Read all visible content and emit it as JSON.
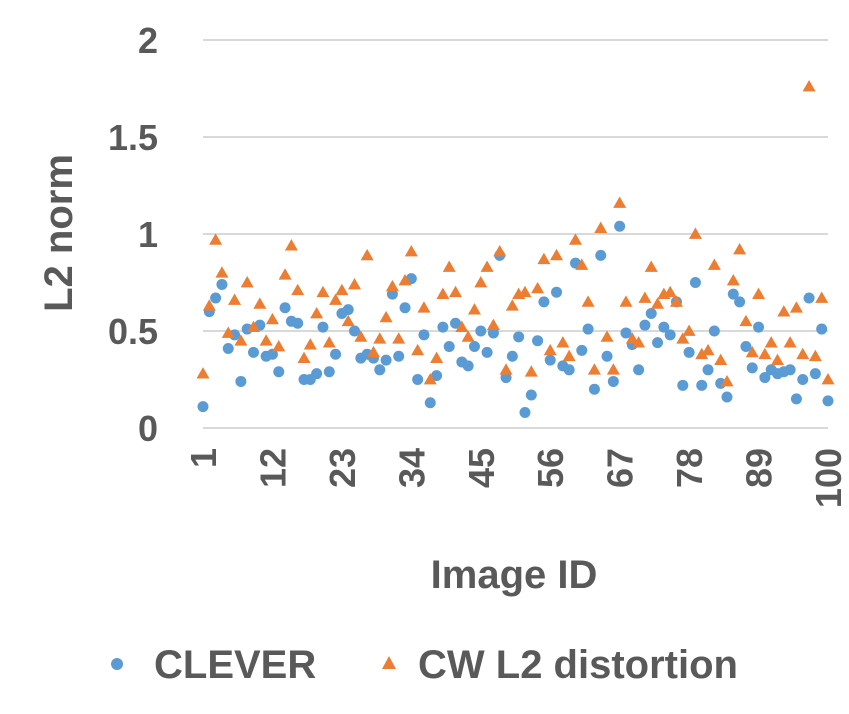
{
  "chart_data": {
    "type": "scatter",
    "ylabel": "L2 norm",
    "xlabel": "Image ID",
    "ylim": [
      0,
      2
    ],
    "yticks": [
      "0",
      "0.5",
      "1",
      "1.5",
      "2"
    ],
    "xticks": [
      1,
      12,
      23,
      34,
      45,
      56,
      67,
      78,
      89,
      100
    ],
    "xlim": [
      1,
      100
    ],
    "grid": "horizontal",
    "legend_position": "bottom",
    "series": [
      {
        "name": "CLEVER",
        "marker": "circle",
        "color": "#5B9BD5",
        "x": [
          1,
          2,
          3,
          4,
          5,
          6,
          7,
          8,
          9,
          10,
          11,
          12,
          13,
          14,
          15,
          16,
          17,
          18,
          19,
          20,
          21,
          22,
          23,
          24,
          25,
          26,
          27,
          28,
          29,
          30,
          31,
          32,
          33,
          34,
          35,
          36,
          37,
          38,
          39,
          40,
          41,
          42,
          43,
          44,
          45,
          46,
          47,
          48,
          49,
          50,
          51,
          52,
          53,
          54,
          55,
          56,
          57,
          58,
          59,
          60,
          61,
          62,
          63,
          64,
          65,
          66,
          67,
          68,
          69,
          70,
          71,
          72,
          73,
          74,
          75,
          76,
          77,
          78,
          79,
          80,
          81,
          82,
          83,
          84,
          85,
          86,
          87,
          88,
          89,
          90,
          91,
          92,
          93,
          94,
          95,
          96,
          97,
          98,
          99,
          100
        ],
        "y": [
          0.11,
          0.6,
          0.67,
          0.74,
          0.41,
          0.48,
          0.24,
          0.51,
          0.39,
          0.53,
          0.37,
          0.38,
          0.29,
          0.62,
          0.55,
          0.54,
          0.25,
          0.25,
          0.28,
          0.52,
          0.29,
          0.38,
          0.59,
          0.61,
          0.5,
          0.36,
          0.38,
          0.36,
          0.3,
          0.35,
          0.69,
          0.37,
          0.62,
          0.77,
          0.25,
          0.48,
          0.13,
          0.27,
          0.52,
          0.42,
          0.54,
          0.34,
          0.32,
          0.42,
          0.5,
          0.39,
          0.49,
          0.89,
          0.26,
          0.37,
          0.47,
          0.08,
          0.17,
          0.45,
          0.65,
          0.35,
          0.7,
          0.32,
          0.3,
          0.85,
          0.4,
          0.51,
          0.2,
          0.89,
          0.37,
          0.24,
          1.04,
          0.49,
          0.43,
          0.3,
          0.53,
          0.59,
          0.44,
          0.52,
          0.48,
          0.65,
          0.22,
          0.39,
          0.75,
          0.22,
          0.3,
          0.5,
          0.23,
          0.16,
          0.69,
          0.65,
          0.42,
          0.31,
          0.52,
          0.26,
          0.3,
          0.28,
          0.29,
          0.3,
          0.15,
          0.25,
          0.67,
          0.28,
          0.51,
          0.14
        ]
      },
      {
        "name": "CW L2 distortion",
        "marker": "triangle",
        "color": "#ED7D31",
        "x": [
          1,
          2,
          3,
          4,
          5,
          6,
          7,
          8,
          9,
          10,
          11,
          12,
          13,
          14,
          15,
          16,
          17,
          18,
          19,
          20,
          21,
          22,
          23,
          24,
          25,
          26,
          27,
          28,
          29,
          30,
          31,
          32,
          33,
          34,
          35,
          36,
          37,
          38,
          39,
          40,
          41,
          42,
          43,
          44,
          45,
          46,
          47,
          48,
          49,
          50,
          51,
          52,
          53,
          54,
          55,
          56,
          57,
          58,
          59,
          60,
          61,
          62,
          63,
          64,
          65,
          66,
          67,
          68,
          69,
          70,
          71,
          72,
          73,
          74,
          75,
          76,
          77,
          78,
          79,
          80,
          81,
          82,
          83,
          84,
          85,
          86,
          87,
          88,
          89,
          90,
          91,
          92,
          93,
          94,
          95,
          96,
          97,
          98,
          99,
          100
        ],
        "y": [
          0.28,
          0.63,
          0.97,
          0.8,
          0.49,
          0.66,
          0.45,
          0.75,
          0.52,
          0.64,
          0.45,
          0.56,
          0.42,
          0.79,
          0.94,
          0.71,
          0.36,
          0.43,
          0.59,
          0.7,
          0.44,
          0.66,
          0.71,
          0.55,
          0.74,
          0.47,
          0.89,
          0.39,
          0.46,
          0.57,
          0.73,
          0.46,
          0.76,
          0.91,
          0.4,
          0.62,
          0.25,
          0.36,
          0.69,
          0.83,
          0.7,
          0.52,
          0.47,
          0.61,
          0.75,
          0.83,
          0.53,
          0.91,
          0.3,
          0.63,
          0.69,
          0.7,
          0.29,
          0.72,
          0.87,
          0.4,
          0.89,
          0.44,
          0.37,
          0.97,
          0.84,
          0.65,
          0.3,
          1.03,
          0.47,
          0.3,
          1.16,
          0.65,
          0.46,
          0.44,
          0.67,
          0.83,
          0.64,
          0.69,
          0.7,
          0.65,
          0.46,
          0.5,
          1.0,
          0.38,
          0.4,
          0.84,
          0.35,
          0.24,
          0.76,
          0.92,
          0.55,
          0.39,
          0.69,
          0.38,
          0.44,
          0.35,
          0.6,
          0.44,
          0.62,
          0.38,
          1.76,
          0.37,
          0.67,
          0.25
        ]
      }
    ]
  }
}
